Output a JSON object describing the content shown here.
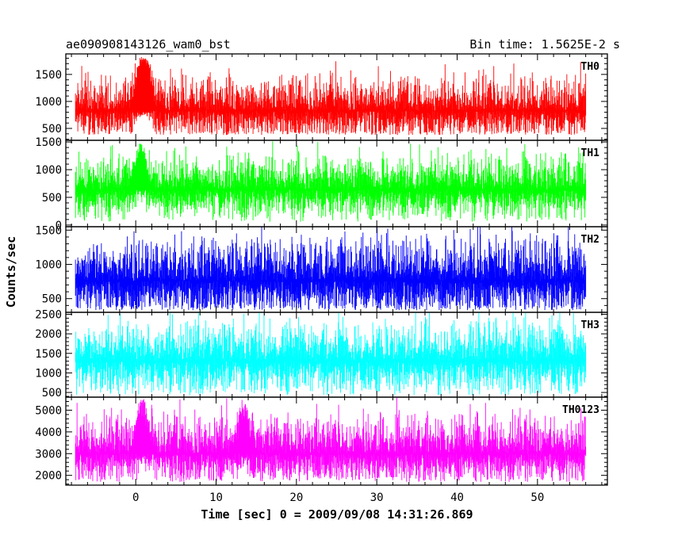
{
  "header": {
    "left_title": "ae090908143126_wam0_bst",
    "right_title": "Bin time: 1.5625E-2 s"
  },
  "chart_data": {
    "type": "line",
    "xlabel": "Time [sec] 0 = 2009/09/08 14:31:26.869",
    "ylabel": "Counts/sec",
    "xlim": [
      -8.7,
      58.7
    ],
    "x_ticks": [
      0,
      10,
      20,
      30,
      40,
      50
    ],
    "x_data_range": [
      -7.5,
      56
    ],
    "bin_time_s": 0.015625,
    "panels": [
      {
        "name": "TH0",
        "color": "#ff0000",
        "ylim": [
          280,
          1880
        ],
        "y_ticks": [
          500,
          1000,
          1500
        ],
        "mean": 830,
        "spread": 330,
        "min": 380,
        "max": 1650,
        "bursts": [
          {
            "t": 0.8,
            "peak": 1880
          },
          {
            "t": 1.2,
            "peak": 1800
          }
        ]
      },
      {
        "name": "TH1",
        "color": "#00ff00",
        "ylim": [
          -30,
          1530
        ],
        "y_ticks": [
          0,
          500,
          1000,
          1500
        ],
        "mean": 640,
        "spread": 320,
        "min": 60,
        "max": 1500,
        "bursts": [
          {
            "t": 0.6,
            "peak": 1530
          }
        ]
      },
      {
        "name": "TH2",
        "color": "#0000ff",
        "ylim": [
          300,
          1550
        ],
        "y_ticks": [
          500,
          1000,
          1500
        ],
        "mean": 760,
        "spread": 330,
        "min": 330,
        "max": 1550,
        "bursts": []
      },
      {
        "name": "TH3",
        "color": "#00ffff",
        "ylim": [
          380,
          2550
        ],
        "y_ticks": [
          500,
          1000,
          1500,
          2000,
          2500
        ],
        "mean": 1300,
        "spread": 520,
        "min": 430,
        "max": 2450,
        "bursts": []
      },
      {
        "name": "TH0123",
        "color": "#ff00ff",
        "ylim": [
          1550,
          5600
        ],
        "y_ticks": [
          2000,
          3000,
          4000,
          5000
        ],
        "mean": 3000,
        "spread": 900,
        "min": 1700,
        "max": 5500,
        "bursts": [
          {
            "t": 0.8,
            "peak": 5600
          },
          {
            "t": 13.5,
            "peak": 5300
          }
        ]
      }
    ]
  }
}
